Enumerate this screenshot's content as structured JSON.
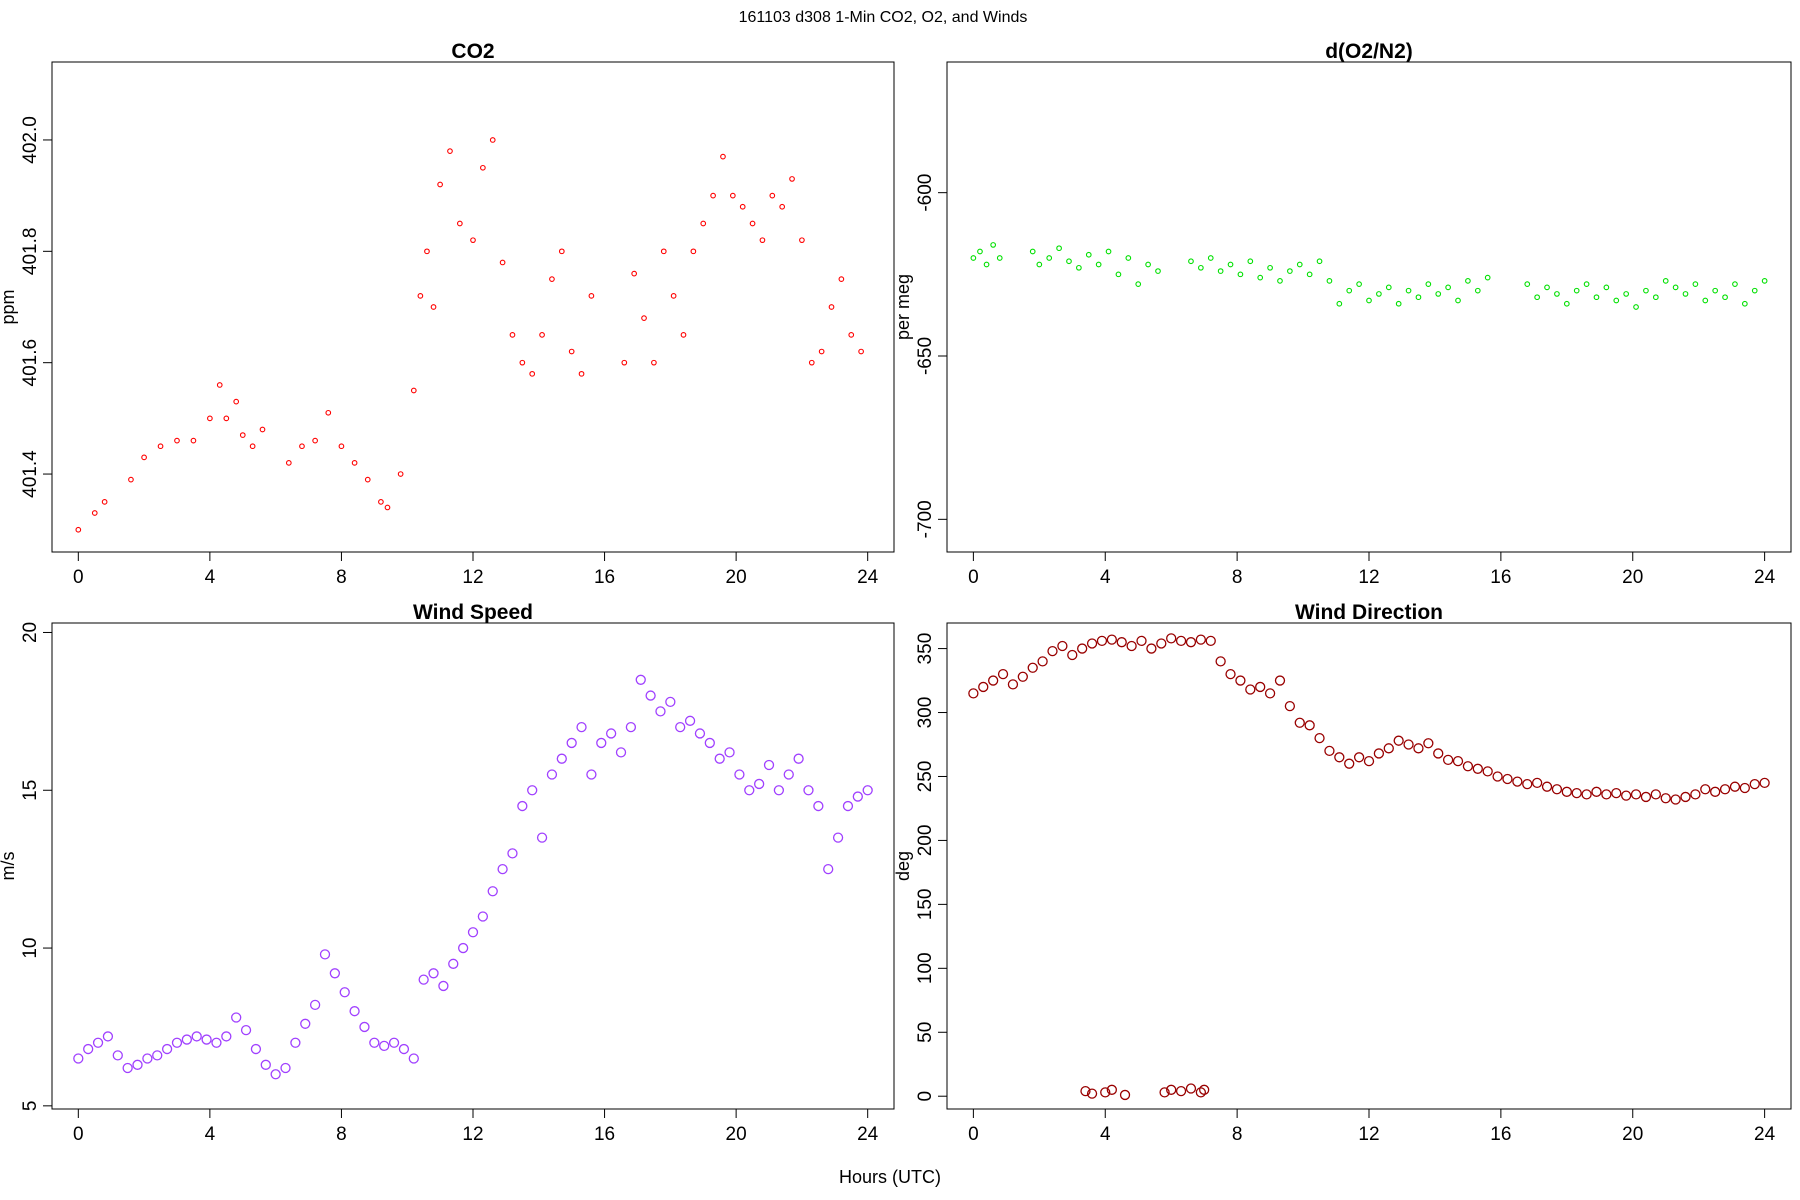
{
  "figure": {
    "suptitle": "161103   d308   1-Min CO2, O2, and Winds",
    "xlabel": "Hours (UTC)"
  },
  "chart_data": [
    {
      "type": "scatter",
      "title": "CO2",
      "xlabel": "",
      "ylabel": "ppm",
      "xlim": [
        -0.8,
        24.8
      ],
      "ylim": [
        401.26,
        402.14
      ],
      "xticks": [
        0,
        4,
        8,
        12,
        16,
        20,
        24
      ],
      "yticks": [
        401.4,
        401.6,
        401.8,
        402.0
      ],
      "ytick_labels": [
        "401.4",
        "401.6",
        "401.8",
        "402.0"
      ],
      "color": "#ff0000",
      "marker": "open-circle-small",
      "x": [
        0.0,
        0.5,
        0.8,
        1.6,
        2.0,
        2.5,
        3.0,
        3.5,
        4.0,
        4.3,
        4.5,
        4.8,
        5.0,
        5.3,
        5.6,
        6.4,
        6.8,
        7.2,
        7.6,
        8.0,
        8.4,
        8.8,
        9.2,
        9.4,
        9.8,
        10.2,
        10.4,
        10.6,
        10.8,
        11.0,
        11.3,
        11.6,
        12.0,
        12.3,
        12.6,
        12.9,
        13.2,
        13.5,
        13.8,
        14.1,
        14.4,
        14.7,
        15.0,
        15.3,
        15.6,
        16.6,
        16.9,
        17.2,
        17.5,
        17.8,
        18.1,
        18.4,
        18.7,
        19.0,
        19.3,
        19.6,
        19.9,
        20.2,
        20.5,
        20.8,
        21.1,
        21.4,
        21.7,
        22.0,
        22.3,
        22.6,
        22.9,
        23.2,
        23.5,
        23.8
      ],
      "y": [
        401.3,
        401.33,
        401.35,
        401.39,
        401.43,
        401.45,
        401.46,
        401.46,
        401.5,
        401.56,
        401.5,
        401.53,
        401.47,
        401.45,
        401.48,
        401.42,
        401.45,
        401.46,
        401.51,
        401.45,
        401.42,
        401.39,
        401.35,
        401.34,
        401.4,
        401.55,
        401.72,
        401.8,
        401.7,
        401.92,
        401.98,
        401.85,
        401.82,
        401.95,
        402.0,
        401.78,
        401.65,
        401.6,
        401.58,
        401.65,
        401.75,
        401.8,
        401.62,
        401.58,
        401.72,
        401.6,
        401.76,
        401.68,
        401.6,
        401.8,
        401.72,
        401.65,
        401.8,
        401.85,
        401.9,
        401.97,
        401.9,
        401.88,
        401.85,
        401.82,
        401.9,
        401.88,
        401.93,
        401.82,
        401.6,
        401.62,
        401.7,
        401.75,
        401.65,
        401.62
      ]
    },
    {
      "type": "scatter",
      "title": "d(O2/N2)",
      "xlabel": "",
      "ylabel": "per meg",
      "xlim": [
        -0.8,
        24.8
      ],
      "ylim": [
        -710,
        -560
      ],
      "xticks": [
        0,
        4,
        8,
        12,
        16,
        20,
        24
      ],
      "yticks": [
        -700,
        -650,
        -600
      ],
      "ytick_labels": [
        "-700",
        "-650",
        "-600"
      ],
      "color": "#00e000",
      "marker": "open-circle-small",
      "x": [
        0.0,
        0.2,
        0.4,
        0.6,
        0.8,
        1.8,
        2.0,
        2.3,
        2.6,
        2.9,
        3.2,
        3.5,
        3.8,
        4.1,
        4.4,
        4.7,
        5.0,
        5.3,
        5.6,
        6.6,
        6.9,
        7.2,
        7.5,
        7.8,
        8.1,
        8.4,
        8.7,
        9.0,
        9.3,
        9.6,
        9.9,
        10.2,
        10.5,
        10.8,
        11.1,
        11.4,
        11.7,
        12.0,
        12.3,
        12.6,
        12.9,
        13.2,
        13.5,
        13.8,
        14.1,
        14.4,
        14.7,
        15.0,
        15.3,
        15.6,
        16.8,
        17.1,
        17.4,
        17.7,
        18.0,
        18.3,
        18.6,
        18.9,
        19.2,
        19.5,
        19.8,
        20.1,
        20.4,
        20.7,
        21.0,
        21.3,
        21.6,
        21.9,
        22.2,
        22.5,
        22.8,
        23.1,
        23.4,
        23.7,
        24.0
      ],
      "y": [
        -620,
        -618,
        -622,
        -616,
        -620,
        -618,
        -622,
        -620,
        -617,
        -621,
        -623,
        -619,
        -622,
        -618,
        -625,
        -620,
        -628,
        -622,
        -624,
        -621,
        -623,
        -620,
        -624,
        -622,
        -625,
        -621,
        -626,
        -623,
        -627,
        -624,
        -622,
        -625,
        -621,
        -627,
        -634,
        -630,
        -628,
        -633,
        -631,
        -629,
        -634,
        -630,
        -632,
        -628,
        -631,
        -629,
        -633,
        -627,
        -630,
        -626,
        -628,
        -632,
        -629,
        -631,
        -634,
        -630,
        -628,
        -632,
        -629,
        -633,
        -631,
        -635,
        -630,
        -632,
        -627,
        -629,
        -631,
        -628,
        -633,
        -630,
        -632,
        -628,
        -634,
        -630,
        -627
      ]
    },
    {
      "type": "scatter",
      "title": "Wind Speed",
      "xlabel": "",
      "ylabel": "m/s",
      "xlim": [
        -0.8,
        24.8
      ],
      "ylim": [
        4.9,
        20.3
      ],
      "xticks": [
        0,
        4,
        8,
        12,
        16,
        20,
        24
      ],
      "yticks": [
        5,
        10,
        15,
        20
      ],
      "ytick_labels": [
        "5",
        "10",
        "15",
        "20"
      ],
      "color": "#a040ff",
      "marker": "open-circle",
      "x": [
        0.0,
        0.3,
        0.6,
        0.9,
        1.2,
        1.5,
        1.8,
        2.1,
        2.4,
        2.7,
        3.0,
        3.3,
        3.6,
        3.9,
        4.2,
        4.5,
        4.8,
        5.1,
        5.4,
        5.7,
        6.0,
        6.3,
        6.6,
        6.9,
        7.2,
        7.5,
        7.8,
        8.1,
        8.4,
        8.7,
        9.0,
        9.3,
        9.6,
        9.9,
        10.2,
        10.5,
        10.8,
        11.1,
        11.4,
        11.7,
        12.0,
        12.3,
        12.6,
        12.9,
        13.2,
        13.5,
        13.8,
        14.1,
        14.4,
        14.7,
        15.0,
        15.3,
        15.6,
        15.9,
        16.2,
        16.5,
        16.8,
        17.1,
        17.4,
        17.7,
        18.0,
        18.3,
        18.6,
        18.9,
        19.2,
        19.5,
        19.8,
        20.1,
        20.4,
        20.7,
        21.0,
        21.3,
        21.6,
        21.9,
        22.2,
        22.5,
        22.8,
        23.1,
        23.4,
        23.7,
        24.0
      ],
      "y": [
        6.5,
        6.8,
        7.0,
        7.2,
        6.6,
        6.2,
        6.3,
        6.5,
        6.6,
        6.8,
        7.0,
        7.1,
        7.2,
        7.1,
        7.0,
        7.2,
        7.8,
        7.4,
        6.8,
        6.3,
        6.0,
        6.2,
        7.0,
        7.6,
        8.2,
        9.8,
        9.2,
        8.6,
        8.0,
        7.5,
        7.0,
        6.9,
        7.0,
        6.8,
        6.5,
        9.0,
        9.2,
        8.8,
        9.5,
        10.0,
        10.5,
        11.0,
        11.8,
        12.5,
        13.0,
        14.5,
        15.0,
        13.5,
        15.5,
        16.0,
        16.5,
        17.0,
        15.5,
        16.5,
        16.8,
        16.2,
        17.0,
        18.5,
        18.0,
        17.5,
        17.8,
        17.0,
        17.2,
        16.8,
        16.5,
        16.0,
        16.2,
        15.5,
        15.0,
        15.2,
        15.8,
        15.0,
        15.5,
        16.0,
        15.0,
        14.5,
        12.5,
        13.5,
        14.5,
        14.8,
        15.0
      ]
    },
    {
      "type": "scatter",
      "title": "Wind Direction",
      "xlabel": "",
      "ylabel": "deg",
      "xlim": [
        -0.8,
        24.8
      ],
      "ylim": [
        -10,
        370
      ],
      "xticks": [
        0,
        4,
        8,
        12,
        16,
        20,
        24
      ],
      "yticks": [
        0,
        50,
        100,
        150,
        200,
        250,
        300,
        350
      ],
      "ytick_labels": [
        "0",
        "50",
        "100",
        "150",
        "200",
        "250",
        "300",
        "350"
      ],
      "color": "#990000",
      "marker": "open-circle",
      "x": [
        0.0,
        0.3,
        0.6,
        0.9,
        1.2,
        1.5,
        1.8,
        2.1,
        2.4,
        2.7,
        3.0,
        3.3,
        3.6,
        3.9,
        4.2,
        4.5,
        4.8,
        5.1,
        5.4,
        5.7,
        6.0,
        6.3,
        6.6,
        6.9,
        7.2,
        7.5,
        7.8,
        8.1,
        8.4,
        8.7,
        9.0,
        9.3,
        9.6,
        9.9,
        10.2,
        10.5,
        10.8,
        11.1,
        11.4,
        11.7,
        12.0,
        12.3,
        12.6,
        12.9,
        13.2,
        13.5,
        13.8,
        14.1,
        14.4,
        14.7,
        15.0,
        15.3,
        15.6,
        15.9,
        16.2,
        16.5,
        16.8,
        17.1,
        17.4,
        17.7,
        18.0,
        18.3,
        18.6,
        18.9,
        19.2,
        19.5,
        19.8,
        20.1,
        20.4,
        20.7,
        21.0,
        21.3,
        21.6,
        21.9,
        22.2,
        22.5,
        22.8,
        23.1,
        23.4,
        23.7,
        24.0,
        3.4,
        3.6,
        4.0,
        4.2,
        4.6,
        5.8,
        6.0,
        6.3,
        6.6,
        6.9,
        7.0
      ],
      "y": [
        315,
        320,
        325,
        330,
        322,
        328,
        335,
        340,
        348,
        352,
        345,
        350,
        354,
        356,
        357,
        355,
        352,
        356,
        350,
        354,
        358,
        356,
        355,
        357,
        356,
        340,
        330,
        325,
        318,
        320,
        315,
        325,
        305,
        292,
        290,
        280,
        270,
        265,
        260,
        265,
        262,
        268,
        272,
        278,
        275,
        272,
        276,
        268,
        263,
        262,
        258,
        256,
        254,
        250,
        248,
        246,
        244,
        245,
        242,
        240,
        238,
        237,
        236,
        238,
        236,
        237,
        235,
        236,
        234,
        236,
        233,
        232,
        234,
        236,
        240,
        238,
        240,
        242,
        241,
        244,
        245,
        4,
        2,
        3,
        5,
        1,
        3,
        5,
        4,
        6,
        3,
        5
      ]
    }
  ]
}
